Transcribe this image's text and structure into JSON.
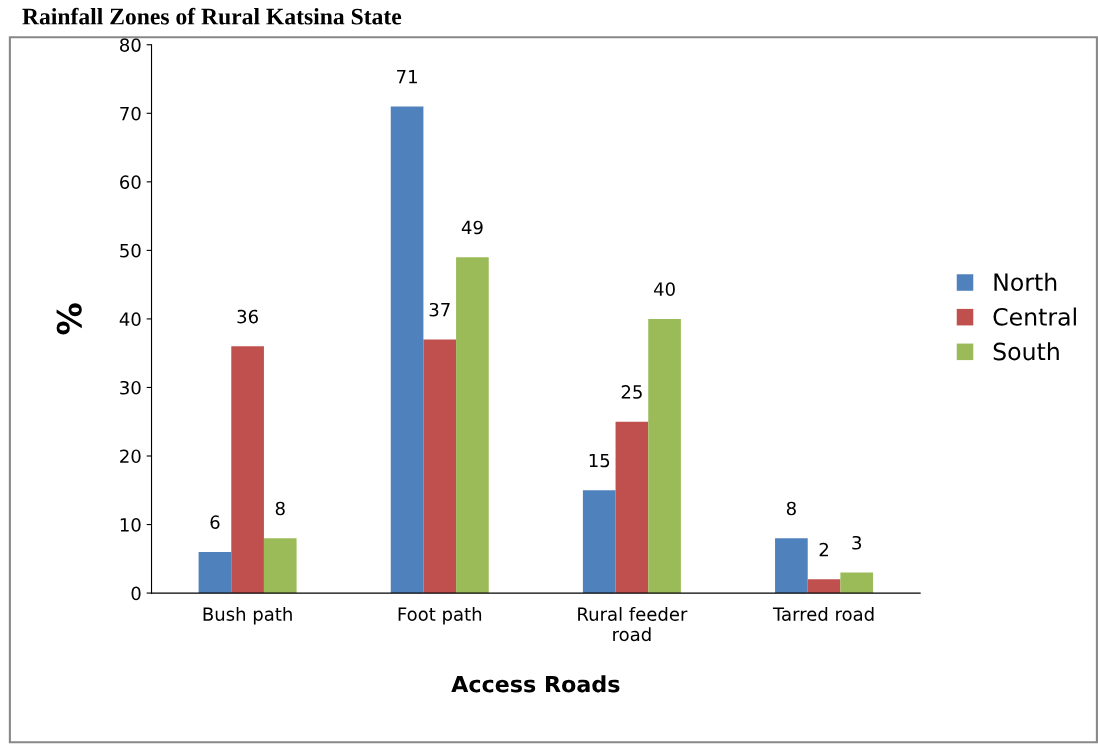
{
  "chart_data": {
    "type": "bar",
    "title": "Rainfall Zones of Rural Katsina State",
    "xlabel": "Access Roads",
    "ylabel": "%",
    "categories": [
      "Bush path",
      "Foot path",
      "Rural feeder\nroad",
      "Tarred road"
    ],
    "series": [
      {
        "name": "North",
        "color": "#4f81bd",
        "values": [
          6,
          71,
          15,
          8
        ]
      },
      {
        "name": "Central",
        "color": "#c0504d",
        "values": [
          36,
          37,
          25,
          2
        ]
      },
      {
        "name": "South",
        "color": "#9bbb59",
        "values": [
          8,
          49,
          40,
          3
        ]
      }
    ],
    "ylim": [
      0,
      80
    ],
    "yticks": [
      0,
      10,
      20,
      30,
      40,
      50,
      60,
      70,
      80
    ],
    "grid": false,
    "legend": "right",
    "data_labels": true
  }
}
